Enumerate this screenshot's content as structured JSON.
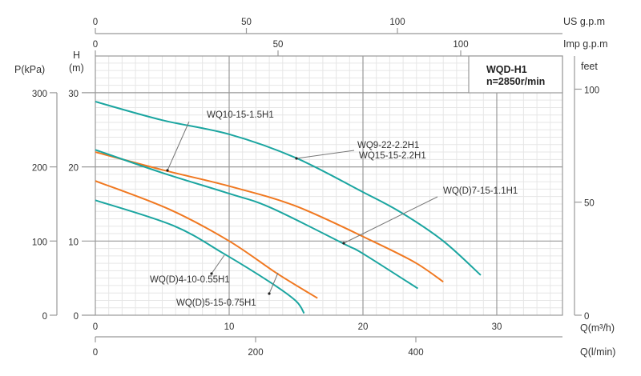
{
  "chart_data": {
    "type": "line",
    "title": "WQD-H1",
    "subtitle": "n=2850r/min",
    "xlabel": "Q(m³/h)",
    "ylabel_left_outer": "P(kPa)",
    "ylabel_left_h": "H",
    "ylabel_left_unit": "(m)",
    "ylabel_right": "feet",
    "x2label_top": "US g.p.m",
    "x3label_top": "Imp g.p.m",
    "x4label_bottom": "Q(l/min)",
    "xlim": [
      0,
      35
    ],
    "ylim": [
      0,
      35
    ],
    "grid": true,
    "x_ticks": [
      "0",
      "10",
      "20",
      "30"
    ],
    "y_ticks": [
      "0",
      "10",
      "20",
      "30"
    ],
    "p_ticks": [
      "0",
      "100",
      "200",
      "300"
    ],
    "feet_ticks": [
      "0",
      "50",
      "100"
    ],
    "us_gpm_ticks": [
      "0",
      "50",
      "100"
    ],
    "imp_gpm_ticks": [
      "0",
      "50",
      "100"
    ],
    "lmin_ticks": [
      "0",
      "200",
      "400"
    ],
    "colors": {
      "teal": "#1aa5a0",
      "orange": "#f07820"
    },
    "series": [
      {
        "name": "WQ9-22-2.2H1 / WQ15-15-2.2H1",
        "label1": "WQ9-22-2.2H1",
        "label2": "WQ15-15-2.2H1",
        "color": "teal",
        "x": [
          0,
          5,
          10,
          15,
          20,
          22.8,
          26,
          28.8
        ],
        "y": [
          28.8,
          26.3,
          24.4,
          21.2,
          16.6,
          13.9,
          10.0,
          5.4
        ]
      },
      {
        "name": "WQ10-15-1.5H1",
        "label1": "WQ10-15-1.5H1",
        "color": "orange",
        "x": [
          0,
          5,
          10,
          15,
          20.7,
          23.9,
          26
        ],
        "y": [
          22.0,
          19.6,
          17.4,
          14.7,
          10.0,
          7.1,
          4.5
        ]
      },
      {
        "name": "WQ(D)7-15-1.1H1",
        "label1": "WQ(D)7-15-1.1H1",
        "color": "teal",
        "x": [
          0,
          5,
          10,
          13.1,
          18.6,
          20,
          24.1
        ],
        "y": [
          22.3,
          19.2,
          16.4,
          14.5,
          9.6,
          8.3,
          3.6
        ]
      },
      {
        "name": "WQ(D)5-15-0.75H1",
        "label1": "WQ(D)5-15-0.75H1",
        "color": "orange",
        "x": [
          0,
          5.5,
          10,
          13.6,
          16.6
        ],
        "y": [
          18.1,
          14.3,
          10.0,
          5.6,
          2.3
        ]
      },
      {
        "name": "WQ(D)4-10-0.55H1",
        "label1": "WQ(D)4-10-0.55H1",
        "color": "teal",
        "x": [
          0,
          5.8,
          9.6,
          13.1,
          15.0,
          15.6
        ],
        "y": [
          15.5,
          12.1,
          8.3,
          4.4,
          1.9,
          0.25
        ]
      }
    ]
  }
}
